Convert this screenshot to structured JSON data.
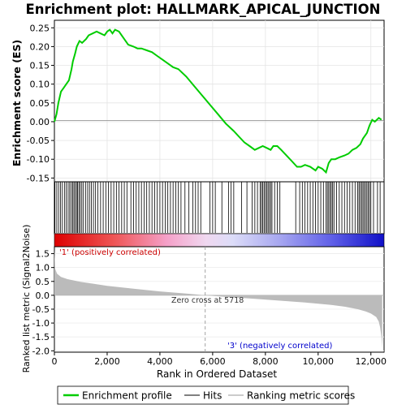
{
  "title": "Enrichment plot: HALLMARK_APICAL_JUNCTION",
  "legend": {
    "items": [
      {
        "label": "Enrichment profile",
        "color": "#00cc00"
      },
      {
        "label": "Hits",
        "color": "#000000"
      },
      {
        "label": "Ranking metric scores",
        "color": "#bbbbbb"
      }
    ]
  },
  "chart_data": [
    {
      "type": "line",
      "name": "enrichment",
      "ylabel": "Enrichment score (ES)",
      "xlim": [
        0,
        12500
      ],
      "ylim": [
        -0.16,
        0.27
      ],
      "yticks": [
        -0.15,
        -0.1,
        -0.05,
        0.0,
        0.05,
        0.1,
        0.15,
        0.2,
        0.25
      ],
      "ytick_labels": [
        "-0.15",
        "-0.10",
        "-0.05",
        "0.00",
        "0.05",
        "0.10",
        "0.15",
        "0.20",
        "0.25"
      ],
      "grid": true,
      "color": "#00cc00",
      "x": [
        0,
        80,
        150,
        250,
        350,
        450,
        550,
        650,
        700,
        780,
        850,
        950,
        1050,
        1200,
        1300,
        1450,
        1600,
        1750,
        1900,
        2000,
        2100,
        2200,
        2300,
        2450,
        2600,
        2800,
        3000,
        3150,
        3300,
        3500,
        3700,
        3900,
        4100,
        4300,
        4500,
        4700,
        5000,
        5300,
        5600,
        5900,
        6200,
        6500,
        6800,
        7000,
        7200,
        7400,
        7600,
        7750,
        7900,
        8050,
        8200,
        8300,
        8450,
        8600,
        8800,
        9000,
        9200,
        9350,
        9500,
        9700,
        9900,
        10000,
        10150,
        10300,
        10400,
        10500,
        10650,
        10800,
        11000,
        11150,
        11300,
        11450,
        11600,
        11700,
        11850,
        11950,
        12050,
        12150,
        12300,
        12400
      ],
      "y": [
        0.0,
        0.02,
        0.05,
        0.08,
        0.09,
        0.1,
        0.11,
        0.14,
        0.16,
        0.18,
        0.2,
        0.215,
        0.21,
        0.22,
        0.23,
        0.235,
        0.24,
        0.235,
        0.23,
        0.24,
        0.245,
        0.235,
        0.245,
        0.24,
        0.225,
        0.205,
        0.2,
        0.195,
        0.195,
        0.19,
        0.185,
        0.175,
        0.165,
        0.155,
        0.145,
        0.14,
        0.12,
        0.095,
        0.07,
        0.045,
        0.02,
        -0.005,
        -0.025,
        -0.04,
        -0.055,
        -0.065,
        -0.075,
        -0.07,
        -0.065,
        -0.07,
        -0.075,
        -0.065,
        -0.065,
        -0.075,
        -0.09,
        -0.105,
        -0.12,
        -0.12,
        -0.115,
        -0.12,
        -0.13,
        -0.12,
        -0.125,
        -0.135,
        -0.11,
        -0.1,
        -0.1,
        -0.095,
        -0.09,
        -0.085,
        -0.075,
        -0.07,
        -0.06,
        -0.045,
        -0.03,
        -0.01,
        0.005,
        0.0,
        0.01,
        0.005
      ]
    },
    {
      "type": "scatter",
      "name": "hits",
      "xlim": [
        0,
        12500
      ],
      "x": [
        20,
        90,
        160,
        230,
        300,
        380,
        450,
        520,
        580,
        640,
        690,
        740,
        790,
        840,
        880,
        930,
        980,
        1040,
        1100,
        1180,
        1260,
        1330,
        1400,
        1480,
        1560,
        1650,
        1750,
        1850,
        1950,
        2050,
        2150,
        2250,
        2350,
        2450,
        2550,
        2650,
        2750,
        2900,
        3000,
        3100,
        3200,
        3300,
        3400,
        3500,
        3600,
        3700,
        3800,
        3900,
        4000,
        4100,
        4200,
        4300,
        4400,
        4500,
        4600,
        4700,
        4800,
        4950,
        5100,
        5250,
        5350,
        5450,
        5550,
        5900,
        6000,
        6100,
        6350,
        6600,
        6700,
        6800,
        7100,
        7300,
        7500,
        7600,
        7700,
        7800,
        7850,
        7900,
        7950,
        8000,
        8050,
        8100,
        8150,
        8200,
        8250,
        8350,
        8450,
        8550,
        9150,
        9300,
        9400,
        9500,
        9600,
        9700,
        9800,
        9900,
        10000,
        10100,
        10200,
        10300,
        10350,
        10400,
        10450,
        10500,
        10550,
        10600,
        10700,
        10800,
        10900,
        11000,
        11100,
        11200,
        11300,
        11400,
        11500,
        11550,
        11600,
        11650,
        11700,
        11750,
        11800,
        11850,
        11900,
        11950,
        12000,
        12100,
        12250,
        12350
      ]
    },
    {
      "type": "area",
      "name": "ranked-metric",
      "xlabel": "Rank in Ordered Dataset",
      "ylabel": "Ranked list metric (Signal2Noise)",
      "xlim": [
        0,
        12500
      ],
      "ylim": [
        -2.05,
        1.75
      ],
      "xticks": [
        0,
        2000,
        4000,
        6000,
        8000,
        10000,
        12000
      ],
      "xtick_labels": [
        "0",
        "2,000",
        "4,000",
        "6,000",
        "8,000",
        "10,000",
        "12,000"
      ],
      "yticks": [
        -2.0,
        -1.5,
        -1.0,
        -0.5,
        0.0,
        0.5,
        1.0,
        1.5
      ],
      "ytick_labels": [
        "-2.0",
        "-1.5",
        "-1.0",
        "-0.5",
        "0.0",
        "0.5",
        "1.0",
        "1.5"
      ],
      "color": "#bbbbbb",
      "x": [
        0,
        30,
        100,
        250,
        500,
        1000,
        1500,
        2000,
        3000,
        4000,
        5000,
        5718,
        6500,
        7500,
        8500,
        9500,
        10500,
        11000,
        11500,
        11800,
        12000,
        12200,
        12300,
        12350,
        12400,
        12430
      ],
      "y": [
        1.65,
        0.95,
        0.78,
        0.66,
        0.58,
        0.48,
        0.41,
        0.34,
        0.24,
        0.14,
        0.06,
        0.0,
        -0.06,
        -0.12,
        -0.19,
        -0.26,
        -0.35,
        -0.41,
        -0.5,
        -0.58,
        -0.66,
        -0.78,
        -0.95,
        -1.15,
        -1.5,
        -1.9
      ],
      "zero_cross_rank": 5718,
      "annotations": {
        "zero_cross": "Zero cross at 5718",
        "positive": "'1' (positively correlated)",
        "negative": "'3' (negatively correlated)"
      }
    }
  ]
}
